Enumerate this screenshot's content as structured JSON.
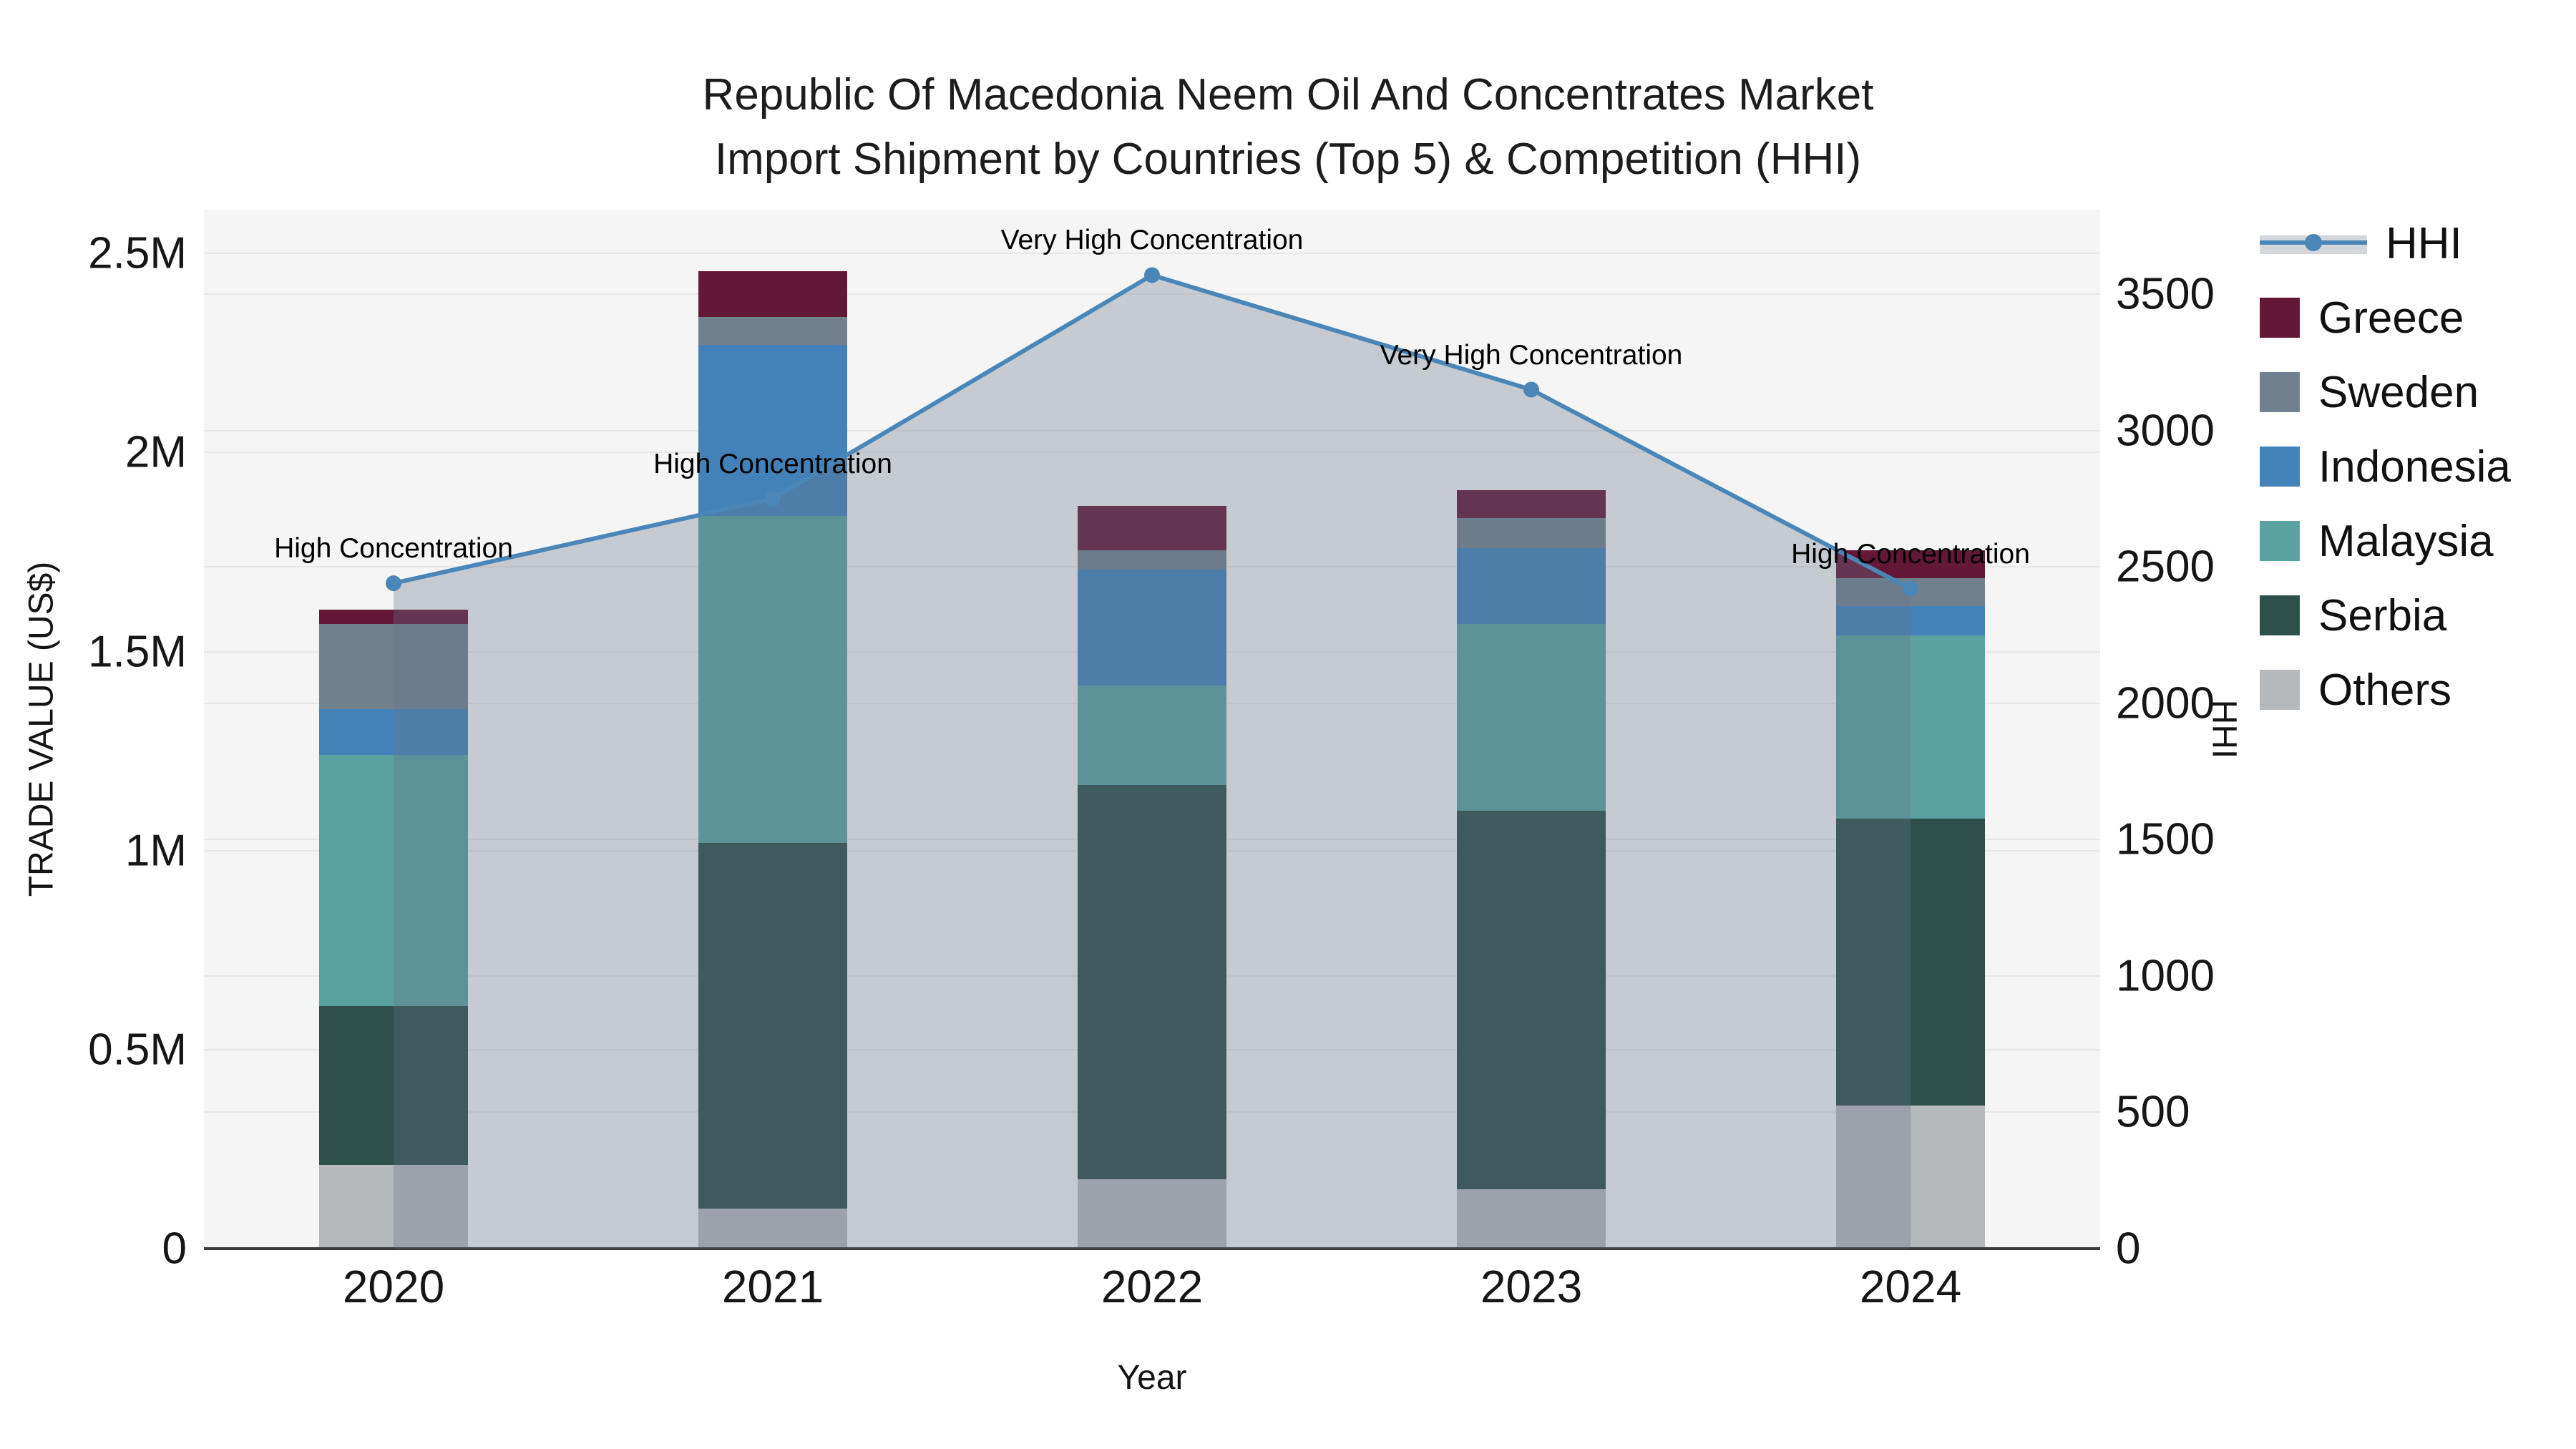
{
  "title": {
    "line1": "Republic Of Macedonia Neem Oil And Concentrates Market",
    "line2": "Import Shipment by Countries (Top 5) & Competition (HHI)"
  },
  "legend": {
    "items": [
      {
        "label": "HHI",
        "type": "line",
        "color": "#4a86b8"
      },
      {
        "label": "Greece",
        "type": "swatch",
        "color": "#641838"
      },
      {
        "label": "Sweden",
        "type": "swatch",
        "color": "#70808f"
      },
      {
        "label": "Indonesia",
        "type": "swatch",
        "color": "#4382b8"
      },
      {
        "label": "Malaysia",
        "type": "swatch",
        "color": "#5ba1a1"
      },
      {
        "label": "Serbia",
        "type": "swatch",
        "color": "#2f4f4b"
      },
      {
        "label": "Others",
        "type": "swatch",
        "color": "#b6b9bb"
      }
    ]
  },
  "chart_data": {
    "type": "bar",
    "stacked": true,
    "title": "Republic Of Macedonia Neem Oil And Concentrates Market Import Shipment by Countries (Top 5) & Competition (HHI)",
    "categories": [
      "2020",
      "2021",
      "2022",
      "2023",
      "2024"
    ],
    "value_unit": "million US$",
    "series": [
      {
        "name": "Others",
        "color": "#b6b9bb",
        "values": [
          0.21,
          0.1,
          0.175,
          0.15,
          0.36
        ]
      },
      {
        "name": "Serbia",
        "color": "#2f4f4b",
        "values": [
          0.4,
          0.92,
          0.99,
          0.95,
          0.72
        ]
      },
      {
        "name": "Malaysia",
        "color": "#5ba1a1",
        "values": [
          0.63,
          0.82,
          0.25,
          0.47,
          0.46
        ]
      },
      {
        "name": "Indonesia",
        "color": "#4382b8",
        "values": [
          0.115,
          0.43,
          0.29,
          0.19,
          0.075
        ]
      },
      {
        "name": "Sweden",
        "color": "#70808f",
        "values": [
          0.215,
          0.07,
          0.05,
          0.075,
          0.07
        ]
      },
      {
        "name": "Greece",
        "color": "#641838",
        "values": [
          0.035,
          0.115,
          0.11,
          0.07,
          0.07
        ]
      }
    ],
    "line_series": {
      "name": "HHI",
      "axis": "right",
      "color": "#4a86b8",
      "area_fill": "rgba(100,115,135,0.32)",
      "values": [
        2440,
        2750,
        3570,
        3150,
        2420
      ]
    },
    "annotations": [
      {
        "category": "2020",
        "text": "High Concentration"
      },
      {
        "category": "2021",
        "text": "High Concentration"
      },
      {
        "category": "2022",
        "text": "Very High Concentration"
      },
      {
        "category": "2023",
        "text": "Very High Concentration"
      },
      {
        "category": "2024",
        "text": "High Concentration"
      }
    ],
    "left_axis": {
      "title": "TRADE VALUE (US$)",
      "max": 2.61,
      "ticks": [
        {
          "v": 0,
          "label": "0"
        },
        {
          "v": 0.5,
          "label": "0.5M"
        },
        {
          "v": 1,
          "label": "1M"
        },
        {
          "v": 1.5,
          "label": "1.5M"
        },
        {
          "v": 2,
          "label": "2M"
        },
        {
          "v": 2.5,
          "label": "2.5M"
        }
      ]
    },
    "right_axis": {
      "title": "HHI",
      "max": 3810,
      "ticks": [
        {
          "v": 0,
          "label": "0"
        },
        {
          "v": 500,
          "label": "500"
        },
        {
          "v": 1000,
          "label": "1000"
        },
        {
          "v": 1500,
          "label": "1500"
        },
        {
          "v": 2000,
          "label": "2000"
        },
        {
          "v": 2500,
          "label": "2500"
        },
        {
          "v": 3000,
          "label": "3000"
        },
        {
          "v": 3500,
          "label": "3500"
        }
      ]
    },
    "x_axis": {
      "title": "Year"
    },
    "layout": {
      "grid": true,
      "legend_position": "right",
      "plot_bg": "#f5f5f5"
    }
  }
}
